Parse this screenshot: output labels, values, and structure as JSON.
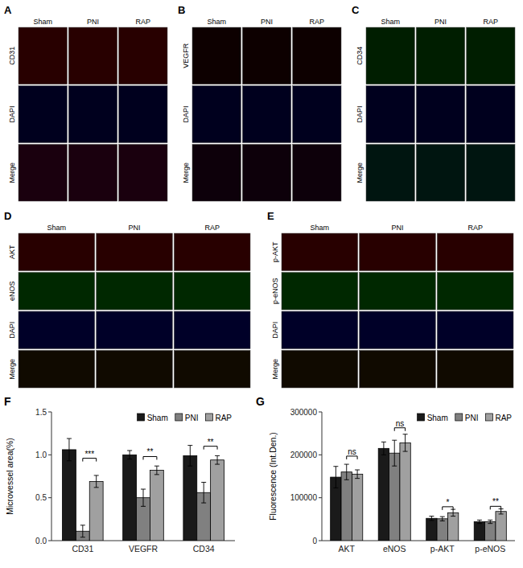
{
  "chart_data": [
    {
      "type": "image_grid",
      "title": "A",
      "categories": [
        "Sham",
        "PNI",
        "RAP"
      ],
      "series": [
        {
          "name": "CD31",
          "color": "#280000"
        },
        {
          "name": "DAPI",
          "color": "#00001e"
        },
        {
          "name": "Merge",
          "color": "#1a000e"
        }
      ]
    },
    {
      "type": "image_grid",
      "title": "B",
      "categories": [
        "Sham",
        "PNI",
        "RAP"
      ],
      "series": [
        {
          "name": "VEGFR",
          "color": "#0d0000"
        },
        {
          "name": "DAPI",
          "color": "#00001e"
        },
        {
          "name": "Merge",
          "color": "#0d000a"
        }
      ]
    },
    {
      "type": "image_grid",
      "title": "C",
      "categories": [
        "Sham",
        "PNI",
        "RAP"
      ],
      "series": [
        {
          "name": "CD34",
          "color": "#001e00"
        },
        {
          "name": "DAPI",
          "color": "#00001e"
        },
        {
          "name": "Merge",
          "color": "#001510"
        }
      ]
    },
    {
      "type": "image_grid",
      "title": "D",
      "categories": [
        "Sham",
        "PNI",
        "RAP"
      ],
      "series": [
        {
          "name": "AKT",
          "color": "#280000"
        },
        {
          "name": "eNOS",
          "color": "#002800"
        },
        {
          "name": "DAPI",
          "color": "#000028"
        },
        {
          "name": "Merge",
          "color": "#100a00"
        }
      ]
    },
    {
      "type": "image_grid",
      "title": "E",
      "categories": [
        "Sham",
        "PNI",
        "RAP"
      ],
      "series": [
        {
          "name": "p-AKT",
          "color": "#280000"
        },
        {
          "name": "p-eNOS",
          "color": "#002800"
        },
        {
          "name": "DAPI",
          "color": "#000028"
        },
        {
          "name": "Merge",
          "color": "#100a00"
        }
      ]
    },
    {
      "type": "bar",
      "title": "F",
      "categories": [
        "CD31",
        "VEGFR",
        "CD34"
      ],
      "series": [
        {
          "name": "Sham",
          "color": "#1a1a1a",
          "values": [
            1.06,
            1.0,
            0.99
          ],
          "errors": [
            0.13,
            0.05,
            0.12
          ]
        },
        {
          "name": "PNI",
          "color": "#808080",
          "values": [
            0.11,
            0.5,
            0.56
          ],
          "errors": [
            0.07,
            0.1,
            0.12
          ]
        },
        {
          "name": "RAP",
          "color": "#a0a0a0",
          "values": [
            0.69,
            0.82,
            0.94
          ],
          "errors": [
            0.07,
            0.05,
            0.05
          ]
        }
      ],
      "ylabel": "Microvessel area(%)",
      "ylim": [
        0.0,
        1.5
      ],
      "yticks": [
        {
          "value": 0.0,
          "label": "0.0"
        },
        0.5,
        {
          "value": 1.0,
          "label": "1.0"
        },
        1.5
      ],
      "legend": "upper right",
      "annotations": [
        {
          "text": "***",
          "category": "CD31",
          "between": [
            "PNI",
            "RAP"
          ],
          "y": 0.96
        },
        {
          "text": "**",
          "category": "VEGFR",
          "between": [
            "PNI",
            "RAP"
          ],
          "y": 0.98
        },
        {
          "text": "**",
          "category": "CD34",
          "between": [
            "PNI",
            "RAP"
          ],
          "y": 1.1
        }
      ]
    },
    {
      "type": "bar",
      "title": "G",
      "categories": [
        "AKT",
        "eNOS",
        "p-AKT",
        "p-eNOS"
      ],
      "series": [
        {
          "name": "Sham",
          "color": "#1a1a1a",
          "values": [
            148000,
            215000,
            52000,
            44000
          ],
          "errors": [
            25000,
            15000,
            5000,
            4000
          ]
        },
        {
          "name": "PNI",
          "color": "#808080",
          "values": [
            160000,
            204000,
            51000,
            44000
          ],
          "errors": [
            18000,
            30000,
            5000,
            4000
          ]
        },
        {
          "name": "RAP",
          "color": "#a0a0a0",
          "values": [
            155000,
            228000,
            65000,
            68000
          ],
          "errors": [
            10000,
            20000,
            8000,
            6000
          ]
        }
      ],
      "ylabel": "Fluorescence (Int.Den.)",
      "ylim": [
        0,
        300000
      ],
      "yticks": [
        0,
        100000,
        200000,
        300000
      ],
      "legend": "upper right",
      "annotations": [
        {
          "text": "ns",
          "category": "AKT",
          "between": [
            "PNI",
            "RAP"
          ],
          "y": 197000
        },
        {
          "text": "ns",
          "category": "eNOS",
          "between": [
            "PNI",
            "RAP"
          ],
          "y": 263000
        },
        {
          "text": "*",
          "category": "p-AKT",
          "between": [
            "PNI",
            "RAP"
          ],
          "y": 79000
        },
        {
          "text": "**",
          "category": "p-eNOS",
          "between": [
            "PNI",
            "RAP"
          ],
          "y": 80000
        }
      ]
    }
  ]
}
